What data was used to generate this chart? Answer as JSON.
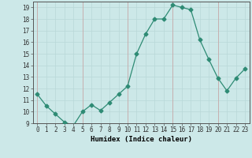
{
  "title": "",
  "xlabel": "Humidex (Indice chaleur)",
  "ylabel": "",
  "x_values": [
    0,
    1,
    2,
    3,
    4,
    5,
    6,
    7,
    8,
    9,
    10,
    11,
    12,
    13,
    14,
    15,
    16,
    17,
    18,
    19,
    20,
    21,
    22,
    23
  ],
  "y_values": [
    11.5,
    10.5,
    9.8,
    9.1,
    8.8,
    10.0,
    10.6,
    10.1,
    10.8,
    11.5,
    12.2,
    15.0,
    16.7,
    18.0,
    18.0,
    19.2,
    19.0,
    18.8,
    16.2,
    14.5,
    12.9,
    11.8,
    12.9,
    13.7
  ],
  "line_color": "#2e8b74",
  "marker": "D",
  "marker_size": 2.5,
  "bg_color": "#cce8e8",
  "grid_minor_color": "#b8d8d8",
  "grid_major_color": "#c8a8a8",
  "ylim": [
    9,
    19.5
  ],
  "xlim": [
    -0.5,
    23.5
  ],
  "yticks": [
    9,
    10,
    11,
    12,
    13,
    14,
    15,
    16,
    17,
    18,
    19
  ],
  "xticks": [
    0,
    1,
    2,
    3,
    4,
    5,
    6,
    7,
    8,
    9,
    10,
    11,
    12,
    13,
    14,
    15,
    16,
    17,
    18,
    19,
    20,
    21,
    22,
    23
  ],
  "tick_fontsize": 5.5,
  "label_fontsize": 6.5
}
